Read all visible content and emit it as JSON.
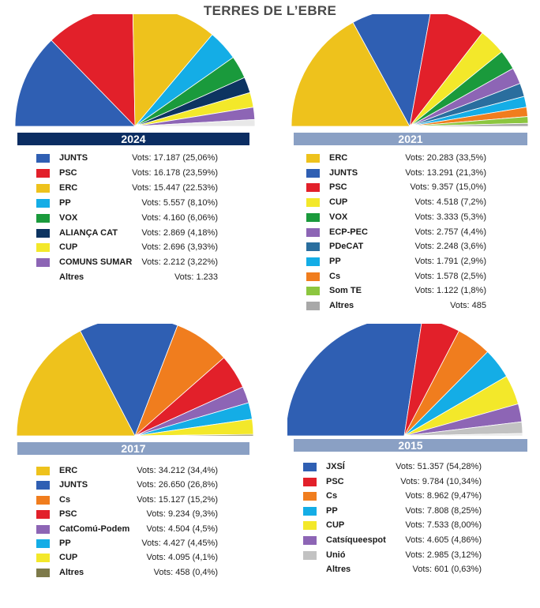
{
  "title": "TERRES DE L’EBRE",
  "colors": {
    "bar_dark": "#0b2d62",
    "bar_light": "#8aa0c4"
  },
  "chart_data": [
    {
      "type": "pie",
      "year": "2024",
      "bar_style": "dark",
      "entries": [
        {
          "party": "JUNTS",
          "color": "#2f5fb3",
          "votes_text": "Vots: 17.187 (25,06%)",
          "pct": 25.06
        },
        {
          "party": "PSC",
          "color": "#e2202a",
          "votes_text": "Vots: 16.178 (23,59%)",
          "pct": 23.59
        },
        {
          "party": "ERC",
          "color": "#eec21c",
          "votes_text": "Vots: 15.447 (22.53%)",
          "pct": 22.53
        },
        {
          "party": "PP",
          "color": "#14ade6",
          "votes_text": "Vots: 5.557 (8,10%)",
          "pct": 8.1
        },
        {
          "party": "VOX",
          "color": "#1a9a3c",
          "votes_text": "Vots: 4.160 (6,06%)",
          "pct": 6.06
        },
        {
          "party": "ALIANÇA CAT",
          "color": "#0d3461",
          "votes_text": "Vots: 2.869 (4,18%)",
          "pct": 4.18
        },
        {
          "party": "CUP",
          "color": "#f3e82a",
          "votes_text": "Vots: 2.696 (3,93%)",
          "pct": 3.93
        },
        {
          "party": "COMUNS SUMAR",
          "color": "#8d65b5",
          "votes_text": "Vots: 2.212 (3,22%)",
          "pct": 3.22
        },
        {
          "party": "Altres",
          "color": "",
          "votes_text": "Vots: 1.233",
          "pct": 1.8
        }
      ]
    },
    {
      "type": "pie",
      "year": "2021",
      "bar_style": "light",
      "entries": [
        {
          "party": "ERC",
          "color": "#eec21c",
          "votes_text": "Vots: 20.283 (33,5%)",
          "pct": 33.5
        },
        {
          "party": "JUNTS",
          "color": "#2f5fb3",
          "votes_text": "Vots: 13.291 (21,3%)",
          "pct": 21.3
        },
        {
          "party": "PSC",
          "color": "#e2202a",
          "votes_text": "Vots: 9.357 (15,0%)",
          "pct": 15.0
        },
        {
          "party": "CUP",
          "color": "#f3e82a",
          "votes_text": "Vots: 4.518 (7,2%)",
          "pct": 7.2
        },
        {
          "party": "VOX",
          "color": "#1a9a3c",
          "votes_text": "Vots: 3.333 (5,3%)",
          "pct": 5.3
        },
        {
          "party": "ECP-PEC",
          "color": "#8d65b5",
          "votes_text": "Vots: 2.757 (4,4%)",
          "pct": 4.4
        },
        {
          "party": "PDeCAT",
          "color": "#2a6e9e",
          "votes_text": "Vots: 2.248 (3,6%)",
          "pct": 3.6
        },
        {
          "party": "PP",
          "color": "#14ade6",
          "votes_text": "Vots: 1.791 (2,9%)",
          "pct": 2.9
        },
        {
          "party": "Cs",
          "color": "#f07d1e",
          "votes_text": "Vots: 1.578 (2,5%)",
          "pct": 2.5
        },
        {
          "party": "Som TE",
          "color": "#8cc63f",
          "votes_text": "Vots: 1.122 (1,8%)",
          "pct": 1.8
        },
        {
          "party": "Altres",
          "color": "#a8a8a8",
          "votes_text": "Vots: 485",
          "pct": 0.8
        }
      ]
    },
    {
      "type": "pie",
      "year": "2017",
      "bar_style": "light",
      "entries": [
        {
          "party": "ERC",
          "color": "#eec21c",
          "votes_text": "Vots: 34.212 (34,4%)",
          "pct": 34.4
        },
        {
          "party": "JUNTS",
          "color": "#2f5fb3",
          "votes_text": "Vots: 26.650 (26,8%)",
          "pct": 26.8
        },
        {
          "party": "Cs",
          "color": "#f07d1e",
          "votes_text": "Vots: 15.127 (15,2%)",
          "pct": 15.2
        },
        {
          "party": "PSC",
          "color": "#e2202a",
          "votes_text": "Vots: 9.234 (9,3%)",
          "pct": 9.3
        },
        {
          "party": "CatComú-Podem",
          "color": "#8d65b5",
          "votes_text": "Vots: 4.504 (4,5%)",
          "pct": 4.5
        },
        {
          "party": "PP",
          "color": "#14ade6",
          "votes_text": "Vots: 4.427 (4,45%)",
          "pct": 4.45
        },
        {
          "party": "CUP",
          "color": "#f3e82a",
          "votes_text": "Vots: 4.095 (4,1%)",
          "pct": 4.1
        },
        {
          "party": "Altres",
          "color": "#7d7a4a",
          "votes_text": "Vots: 458 (0,4%)",
          "pct": 0.4
        }
      ]
    },
    {
      "type": "pie",
      "year": "2015",
      "bar_style": "light",
      "entries": [
        {
          "party": "JXSÍ",
          "color": "#2f5fb3",
          "votes_text": "Vots: 51.357 (54,28%)",
          "pct": 54.28
        },
        {
          "party": "PSC",
          "color": "#e2202a",
          "votes_text": "Vots: 9.784 (10,34%)",
          "pct": 10.34
        },
        {
          "party": "Cs",
          "color": "#f07d1e",
          "votes_text": "Vots: 8.962 (9,47%)",
          "pct": 9.47
        },
        {
          "party": "PP",
          "color": "#14ade6",
          "votes_text": "Vots: 7.808 (8,25%)",
          "pct": 8.25
        },
        {
          "party": "CUP",
          "color": "#f3e82a",
          "votes_text": "Vots: 7.533 (8,00%)",
          "pct": 8.0
        },
        {
          "party": "Catsíqueespot",
          "color": "#8d65b5",
          "votes_text": "Vots: 4.605 (4,86%)",
          "pct": 4.86
        },
        {
          "party": "Unió",
          "color": "#c2c2c2",
          "votes_text": "Vots: 2.985 (3,12%)",
          "pct": 3.12
        },
        {
          "party": "Altres",
          "color": "",
          "votes_text": "Vots: 601 (0,63%)",
          "pct": 0.63
        }
      ]
    }
  ]
}
